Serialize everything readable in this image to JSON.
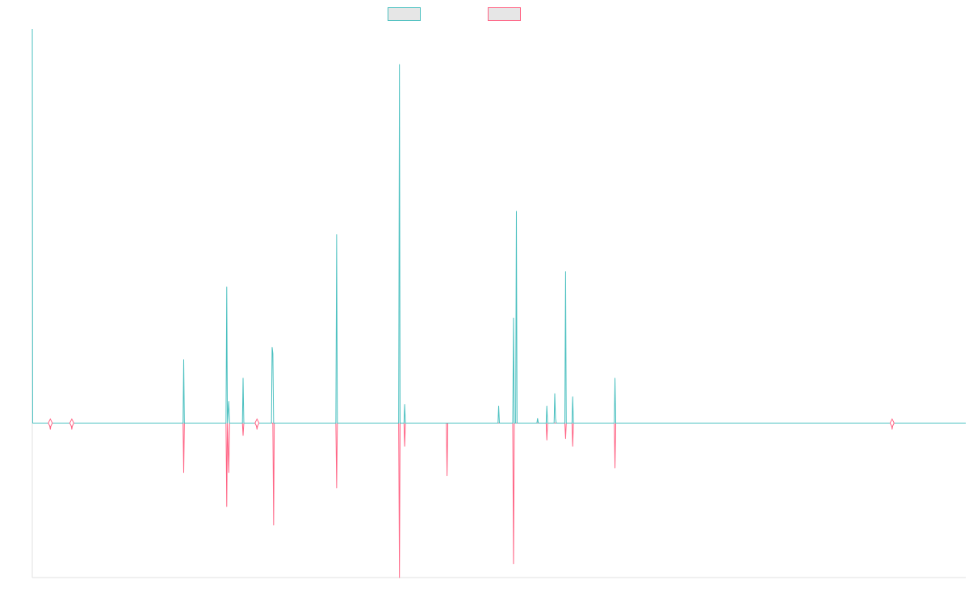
{
  "chart_data": {
    "type": "line",
    "title": "",
    "xlabel": "",
    "ylabel": "",
    "grid": false,
    "legend_position": "top",
    "x_range": [
      0,
      1000
    ],
    "ylim": [
      -1.0,
      2.55
    ],
    "baseline": 0,
    "series": [
      {
        "color": "#4bc0c0",
        "points": [
          [
            0,
            2.55
          ],
          [
            0.4,
            0.0
          ],
          [
            161.5,
            0.0
          ],
          [
            162.2,
            0.41
          ],
          [
            162.9,
            0.0
          ],
          [
            207.5,
            0.0
          ],
          [
            208.3,
            0.88
          ],
          [
            209,
            0.0
          ],
          [
            210.5,
            0.14
          ],
          [
            211.3,
            0.0
          ],
          [
            225.1,
            0.0
          ],
          [
            225.8,
            0.29
          ],
          [
            226.6,
            0.0
          ],
          [
            256.2,
            0.0
          ],
          [
            256.9,
            0.49
          ],
          [
            257.7,
            0.45
          ],
          [
            258.5,
            0.0
          ],
          [
            325.2,
            0.0
          ],
          [
            326,
            1.22
          ],
          [
            326.8,
            0.0
          ],
          [
            392.5,
            0.0
          ],
          [
            393.3,
            2.32
          ],
          [
            394,
            0.0
          ],
          [
            398.2,
            0.0
          ],
          [
            398.9,
            0.12
          ],
          [
            399.7,
            0.0
          ],
          [
            498.9,
            0.0
          ],
          [
            499.6,
            0.11
          ],
          [
            500.4,
            0.0
          ],
          [
            514.7,
            0.0
          ],
          [
            515.5,
            0.68
          ],
          [
            516.3,
            0.0
          ],
          [
            517.8,
            0.0
          ],
          [
            518.6,
            1.37
          ],
          [
            519.3,
            0.0
          ],
          [
            540.6,
            0.0
          ],
          [
            541.3,
            0.03
          ],
          [
            542.1,
            0.0
          ],
          [
            550.5,
            0.0
          ],
          [
            551.2,
            0.11
          ],
          [
            552,
            0.0
          ],
          [
            559,
            0.0
          ],
          [
            559.7,
            0.19
          ],
          [
            560.5,
            0.03
          ],
          [
            561.3,
            0.0
          ],
          [
            570.5,
            0.0
          ],
          [
            571.3,
            0.98
          ],
          [
            572,
            0.0
          ],
          [
            578.2,
            0.0
          ],
          [
            578.9,
            0.17
          ],
          [
            579.7,
            0.0
          ],
          [
            623.5,
            0.0
          ],
          [
            624.2,
            0.29
          ],
          [
            625,
            0.0
          ],
          [
            1000,
            0.0
          ]
        ]
      },
      {
        "color": "#ff6384",
        "points": [
          [
            0,
            0.0
          ],
          [
            18.2,
            0.0
          ],
          [
            19.3,
            -0.04
          ],
          [
            20.4,
            0.0
          ],
          [
            41.2,
            0.0
          ],
          [
            42.3,
            -0.04
          ],
          [
            43.4,
            0.0
          ],
          [
            161.5,
            0.0
          ],
          [
            162.2,
            -0.32
          ],
          [
            162.9,
            0.0
          ],
          [
            207.5,
            0.0
          ],
          [
            208.3,
            -0.54
          ],
          [
            209,
            0.0
          ],
          [
            210.5,
            -0.32
          ],
          [
            211.3,
            0.0
          ],
          [
            225.1,
            0.0
          ],
          [
            225.8,
            -0.08
          ],
          [
            226.6,
            0.0
          ],
          [
            239.6,
            0.0
          ],
          [
            240.7,
            -0.04
          ],
          [
            241.8,
            0.0
          ],
          [
            257.7,
            0.0
          ],
          [
            258.5,
            -0.66
          ],
          [
            259.2,
            0.0
          ],
          [
            325.2,
            0.0
          ],
          [
            326,
            -0.42
          ],
          [
            326.8,
            0.0
          ],
          [
            392.5,
            0.0
          ],
          [
            393.3,
            -1.0
          ],
          [
            394,
            0.0
          ],
          [
            398.2,
            0.0
          ],
          [
            398.9,
            -0.15
          ],
          [
            399.7,
            0.0
          ],
          [
            443.6,
            0.0
          ],
          [
            444.3,
            -0.34
          ],
          [
            445.1,
            0.0
          ],
          [
            514.7,
            0.0
          ],
          [
            515.5,
            -0.91
          ],
          [
            516.3,
            0.0
          ],
          [
            550.5,
            0.0
          ],
          [
            551.2,
            -0.11
          ],
          [
            552,
            0.0
          ],
          [
            570.5,
            0.0
          ],
          [
            571.3,
            -0.1
          ],
          [
            572,
            0.0
          ],
          [
            578.2,
            0.0
          ],
          [
            578.9,
            -0.15
          ],
          [
            579.7,
            0.0
          ],
          [
            623.5,
            0.0
          ],
          [
            624.2,
            -0.29
          ],
          [
            625,
            0.0
          ],
          [
            920.1,
            0.0
          ],
          [
            921.1,
            -0.04
          ],
          [
            922.2,
            0.0
          ],
          [
            1000,
            0.0
          ]
        ]
      }
    ],
    "markers": [
      {
        "x": 19.3,
        "y": 0
      },
      {
        "x": 42.3,
        "y": 0
      },
      {
        "x": 240.7,
        "y": 0
      },
      {
        "x": 921.1,
        "y": 0
      }
    ]
  }
}
